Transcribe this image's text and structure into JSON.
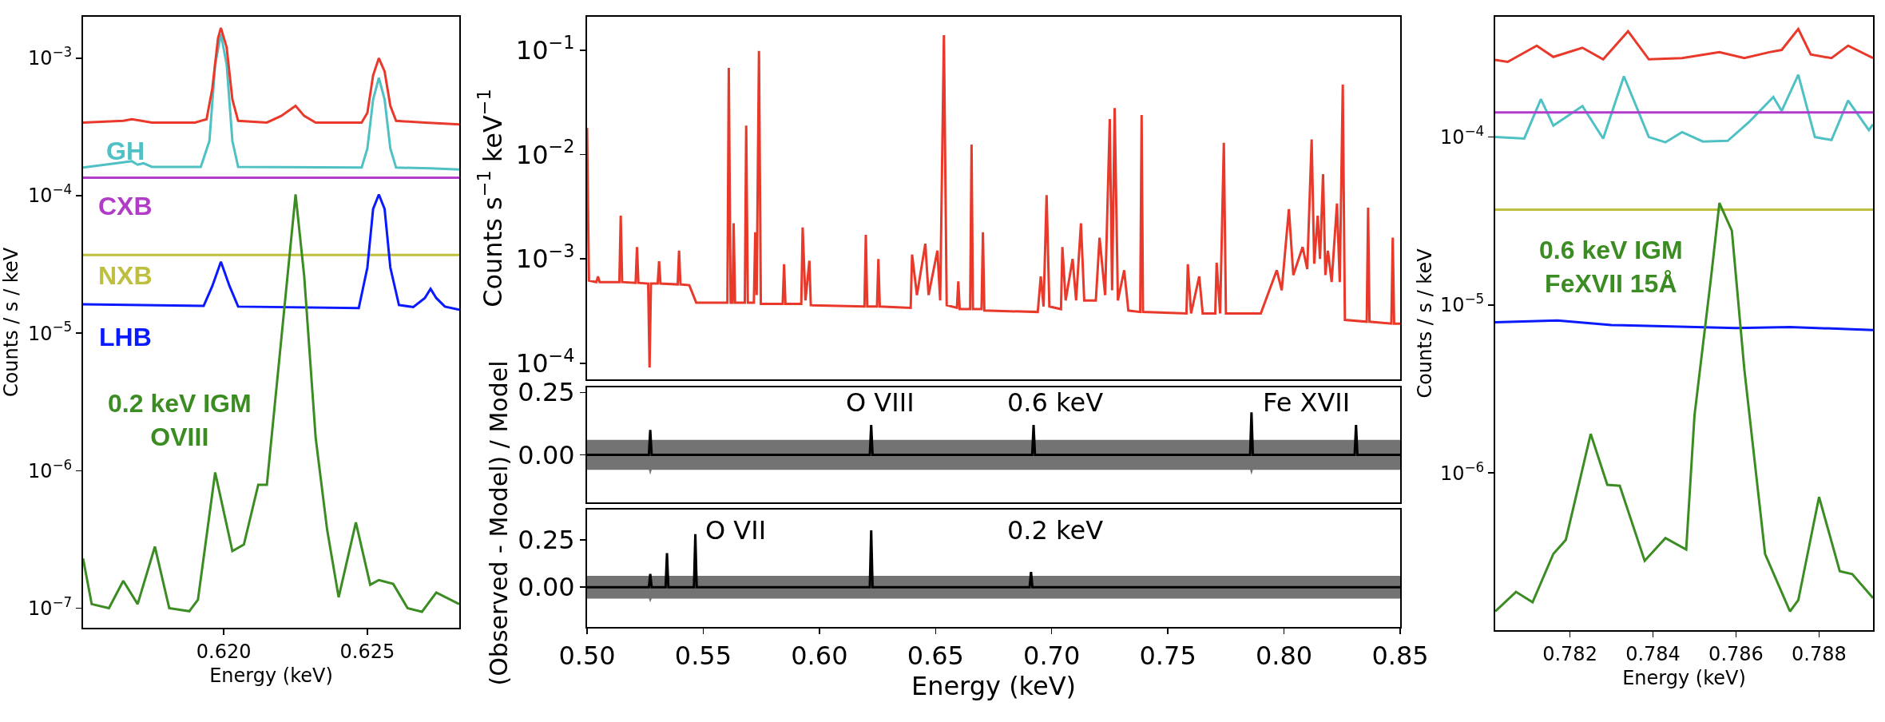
{
  "chart_data": [
    {
      "type": "line",
      "log": true,
      "ylabel": "Counts / s / keV",
      "xlabel": "Energy (keV)",
      "xlim": [
        0.6151,
        0.6282
      ],
      "ylim": [
        7.2e-08,
        0.002
      ],
      "xticks": [
        {
          "value": 0.62,
          "label": "0.620"
        },
        {
          "value": 0.625,
          "label": "0.625"
        }
      ],
      "yticks": [
        {
          "value": 1e-07,
          "label": "10$^{−7}$"
        },
        {
          "value": 1e-06,
          "label": "10$^{−6}$"
        },
        {
          "value": 1e-05,
          "label": "10$^{−5}$"
        },
        {
          "value": 0.0001,
          "label": "10$^{−4}$"
        },
        {
          "value": 0.001,
          "label": "10$^{−3}$"
        }
      ],
      "series": [
        {
          "name": "GH",
          "color": "#4fc1c4",
          "x": [
            0.6151,
            0.6165,
            0.6168,
            0.617,
            0.6172,
            0.6175,
            0.6192,
            0.6195,
            0.6197,
            0.6199,
            0.6201,
            0.6203,
            0.6205,
            0.6248,
            0.625,
            0.6252,
            0.6254,
            0.6256,
            0.6258,
            0.626,
            0.6272,
            0.6282
          ],
          "values": [
            0.00016,
            0.000175,
            0.000178,
            0.000168,
            0.000172,
            0.000162,
            0.000162,
            0.00025,
            0.0009,
            0.0015,
            0.0009,
            0.00025,
            0.000162,
            0.00016,
            0.00022,
            0.0005,
            0.00072,
            0.0005,
            0.00022,
            0.00016,
            0.000158,
            0.000155
          ]
        },
        {
          "name": "CXB",
          "color": "#b03cc8",
          "x": [
            0.6151,
            0.6282
          ],
          "values": [
            0.000135,
            0.000135
          ]
        },
        {
          "name": "NXB",
          "color": "#bfbf3f",
          "x": [
            0.6151,
            0.6282
          ],
          "values": [
            3.7e-05,
            3.7e-05
          ]
        },
        {
          "name": "LHB",
          "color": "#0a1aff",
          "x": [
            0.6151,
            0.6193,
            0.6196,
            0.6199,
            0.6202,
            0.6205,
            0.6247,
            0.625,
            0.6252,
            0.6254,
            0.6256,
            0.6258,
            0.6261,
            0.6266,
            0.627,
            0.6272,
            0.6274,
            0.6277,
            0.6282
          ],
          "values": [
            1.62e-05,
            1.58e-05,
            2.2e-05,
            3.3e-05,
            2.2e-05,
            1.56e-05,
            1.52e-05,
            3e-05,
            8e-05,
            0.000102,
            8e-05,
            3e-05,
            1.6e-05,
            1.55e-05,
            1.8e-05,
            2.1e-05,
            1.8e-05,
            1.56e-05,
            1.48e-05
          ]
        },
        {
          "name": "0.2 keV IGM\nOVIII",
          "color": "#3b8c22",
          "x": [
            0.6151,
            0.6154,
            0.616,
            0.6165,
            0.617,
            0.6176,
            0.6181,
            0.6188,
            0.6191,
            0.6197,
            0.6203,
            0.6207,
            0.6212,
            0.6215,
            0.6219,
            0.6225,
            0.6228,
            0.6232,
            0.6236,
            0.624,
            0.6246,
            0.6251,
            0.6254,
            0.6259,
            0.6264,
            0.6269,
            0.6274,
            0.6282
          ],
          "values": [
            2.3e-07,
            1.07e-07,
            1e-07,
            1.58e-07,
            1.07e-07,
            2.8e-07,
            1e-07,
            9.5e-08,
            1.15e-07,
            9.7e-07,
            2.6e-07,
            2.9e-07,
            7.9e-07,
            7.9e-07,
            5.5e-06,
            0.000102,
            2.6e-05,
            1.73e-06,
            3.7e-07,
            1.2e-07,
            4.2e-07,
            1.48e-07,
            1.6e-07,
            1.5e-07,
            1e-07,
            9.4e-08,
            1.3e-07,
            1.07e-07
          ]
        },
        {
          "color": "#e8392b",
          "x": [
            0.6151,
            0.6165,
            0.6168,
            0.6175,
            0.619,
            0.6194,
            0.6196,
            0.6198,
            0.6199,
            0.6201,
            0.6203,
            0.6205,
            0.6215,
            0.622,
            0.6225,
            0.6228,
            0.6232,
            0.6248,
            0.625,
            0.6252,
            0.6254,
            0.6256,
            0.6258,
            0.626,
            0.627,
            0.6282
          ],
          "values": [
            0.00034,
            0.00035,
            0.00036,
            0.00034,
            0.00034,
            0.00036,
            0.0006,
            0.0014,
            0.00166,
            0.0012,
            0.0005,
            0.00035,
            0.00034,
            0.00038,
            0.00045,
            0.00038,
            0.00034,
            0.00034,
            0.0004,
            0.00075,
            0.001,
            0.0008,
            0.00045,
            0.00035,
            0.00034,
            0.00033
          ]
        }
      ]
    },
    {
      "type": "line",
      "log": true,
      "ylabel": "Counts s$^{−1}$ keV$^{−1}$",
      "xlim": [
        0.5,
        0.85
      ],
      "ylim": [
        7e-05,
        0.21
      ],
      "tick_labels": "y",
      "yticks": [
        {
          "value": 0.0001,
          "label": "10$^{−4}$"
        },
        {
          "value": 0.001,
          "label": "10$^{−3}$"
        },
        {
          "value": 0.01,
          "label": "10$^{−2}$"
        },
        {
          "value": 0.1,
          "label": "10$^{−1}$"
        }
      ],
      "series": [
        {
          "color": "#e8392b",
          "x": [
            0.5,
            0.5008,
            0.504,
            0.5047,
            0.5054,
            0.5139,
            0.5145,
            0.5151,
            0.5209,
            0.5215,
            0.5221,
            0.5263,
            0.5269,
            0.5275,
            0.5304,
            0.531,
            0.5316,
            0.539,
            0.5396,
            0.5402,
            0.544,
            0.547,
            0.5604,
            0.561,
            0.5618,
            0.5626,
            0.5631,
            0.5637,
            0.5679,
            0.5685,
            0.5692,
            0.5718,
            0.5724,
            0.573,
            0.574,
            0.5748,
            0.5842,
            0.5848,
            0.5854,
            0.5922,
            0.5928,
            0.594,
            0.5957,
            0.5963,
            0.6194,
            0.62,
            0.6206,
            0.6248,
            0.6254,
            0.626,
            0.6393,
            0.6399,
            0.642,
            0.6456,
            0.647,
            0.6508,
            0.652,
            0.6536,
            0.6548,
            0.6592,
            0.6598,
            0.6604,
            0.6649,
            0.6655,
            0.6661,
            0.6698,
            0.6704,
            0.671,
            0.694,
            0.6953,
            0.6965,
            0.6978,
            0.699,
            0.704,
            0.7046,
            0.706,
            0.709,
            0.7105,
            0.7126,
            0.714,
            0.719,
            0.7206,
            0.723,
            0.725,
            0.726,
            0.7271,
            0.7285,
            0.7312,
            0.733,
            0.7381,
            0.7387,
            0.7393,
            0.758,
            0.7586,
            0.76,
            0.7635,
            0.765,
            0.7704,
            0.771,
            0.7725,
            0.7741,
            0.775,
            0.79,
            0.7969,
            0.799,
            0.8021,
            0.804,
            0.808,
            0.81,
            0.8119,
            0.813,
            0.8145,
            0.8155,
            0.8168,
            0.8178,
            0.8189,
            0.8205,
            0.8228,
            0.824,
            0.8253,
            0.8262,
            0.8356,
            0.8362,
            0.8368,
            0.8462,
            0.8468,
            0.8474,
            0.85
          ],
          "values": [
            0.018,
            0.00062,
            0.0006,
            0.00068,
            0.0006,
            0.0006,
            0.0026,
            0.0006,
            0.00059,
            0.0013,
            0.00059,
            0.00058,
            9.1e-05,
            0.00058,
            0.00058,
            0.00095,
            0.00058,
            0.00057,
            0.0012,
            0.00057,
            0.00056,
            0.00038,
            0.00038,
            0.068,
            0.00038,
            0.00038,
            0.0022,
            0.00038,
            0.00038,
            0.019,
            0.00038,
            0.00038,
            0.0018,
            0.00045,
            0.099,
            0.00037,
            0.00037,
            0.00089,
            0.00037,
            0.00037,
            0.002,
            0.0004,
            0.00096,
            0.00036,
            0.00035,
            0.0017,
            0.00035,
            0.00035,
            0.001,
            0.00035,
            0.00034,
            0.0011,
            0.00045,
            0.0014,
            0.00045,
            0.0012,
            0.0004,
            0.14,
            0.00036,
            0.00034,
            0.00061,
            0.00033,
            0.00033,
            0.0125,
            0.00033,
            0.00033,
            0.0018,
            0.00032,
            0.00031,
            0.00068,
            0.00035,
            0.0041,
            0.00035,
            0.00033,
            0.0013,
            0.0004,
            0.001,
            0.0004,
            0.0022,
            0.0004,
            0.0004,
            0.0016,
            0.00045,
            0.022,
            0.0005,
            0.028,
            0.0004,
            0.00078,
            0.00032,
            0.00031,
            0.024,
            0.00031,
            0.0003,
            0.00089,
            0.0003,
            0.00068,
            0.0003,
            0.0003,
            0.00092,
            0.0003,
            0.013,
            0.0003,
            0.0003,
            0.00078,
            0.0005,
            0.003,
            0.0007,
            0.0013,
            0.0008,
            0.014,
            0.0009,
            0.0026,
            0.001,
            0.0065,
            0.0007,
            0.0012,
            0.0006,
            0.0034,
            0.0006,
            0.047,
            0.00026,
            0.00025,
            0.0031,
            0.00025,
            0.00024,
            0.0016,
            0.00024,
            0.00024
          ]
        }
      ]
    },
    {
      "type": "line",
      "ylabel": "(Observed - Model) / Model",
      "xlim": [
        0.5,
        0.85
      ],
      "ylim": [
        -0.19,
        0.27
      ],
      "tick_labels": "y",
      "yticks": [
        {
          "value": 0,
          "label": "0.00"
        },
        {
          "value": 0.25,
          "label": "0.25"
        }
      ],
      "annotations": [
        "O VIII",
        "0.6 keV",
        "Fe XVII"
      ],
      "series": [
        {
          "color": "#000000",
          "x": [
            0.5,
            0.5266,
            0.5272,
            0.5278,
            0.6217,
            0.6223,
            0.6229,
            0.6916,
            0.6922,
            0.6928,
            0.7854,
            0.786,
            0.7866,
            0.8304,
            0.831,
            0.8316,
            0.85
          ],
          "values": [
            0,
            0,
            0.1,
            0,
            0,
            0.12,
            0,
            0,
            0.12,
            0,
            0,
            0.17,
            0,
            0,
            0.12,
            0,
            0
          ],
          "lower": [
            -0.06,
            -0.06,
            -0.08,
            -0.06,
            -0.06,
            -0.06,
            -0.06,
            -0.06,
            -0.06,
            -0.06,
            -0.06,
            -0.08,
            -0.06,
            -0.06,
            -0.06,
            -0.06,
            -0.06
          ],
          "upper": [
            0.06,
            0.06,
            0.1,
            0.06,
            0.06,
            0.12,
            0.06,
            0.06,
            0.12,
            0.06,
            0.06,
            0.17,
            0.06,
            0.06,
            0.12,
            0.06,
            0.06
          ]
        }
      ]
    },
    {
      "type": "line",
      "xlabel": "Energy (keV)",
      "xlim": [
        0.5,
        0.85
      ],
      "ylim": [
        -0.21,
        0.41
      ],
      "xticks": [
        {
          "value": 0.5,
          "label": "0.50"
        },
        {
          "value": 0.55,
          "label": "0.55"
        },
        {
          "value": 0.6,
          "label": "0.60"
        },
        {
          "value": 0.65,
          "label": "0.65"
        },
        {
          "value": 0.7,
          "label": "0.70"
        },
        {
          "value": 0.75,
          "label": "0.75"
        },
        {
          "value": 0.8,
          "label": "0.80"
        },
        {
          "value": 0.85,
          "label": "0.85"
        }
      ],
      "yticks": [
        {
          "value": 0,
          "label": "0.00"
        },
        {
          "value": 0.25,
          "label": "0.25"
        }
      ],
      "annotations": [
        "O VII",
        "0.2 keV"
      ],
      "series": [
        {
          "color": "#000000",
          "x": [
            0.5,
            0.5266,
            0.5272,
            0.5278,
            0.5338,
            0.5344,
            0.535,
            0.546,
            0.5466,
            0.5472,
            0.6217,
            0.6223,
            0.6229,
            0.6905,
            0.6911,
            0.6917,
            0.85
          ],
          "values": [
            0,
            0,
            0.07,
            0,
            0,
            0.18,
            0,
            0,
            0.28,
            0,
            0,
            0.3,
            0,
            0,
            0.08,
            0,
            0
          ],
          "lower": [
            -0.06,
            -0.06,
            -0.08,
            -0.06,
            -0.06,
            -0.06,
            -0.06,
            -0.06,
            -0.06,
            -0.06,
            -0.06,
            -0.06,
            -0.06,
            -0.06,
            -0.06,
            -0.06,
            -0.06
          ],
          "upper": [
            0.06,
            0.06,
            0.07,
            0.06,
            0.06,
            0.18,
            0.06,
            0.06,
            0.28,
            0.06,
            0.06,
            0.3,
            0.06,
            0.06,
            0.08,
            0.06,
            0.06
          ]
        }
      ]
    },
    {
      "type": "line",
      "log": true,
      "ylabel": "Counts / s / keV",
      "xlabel": "Energy (keV)",
      "xlim": [
        0.7802,
        0.7893
      ],
      "ylim": [
        1.16e-07,
        0.00052
      ],
      "xticks": [
        {
          "value": 0.782,
          "label": "0.782"
        },
        {
          "value": 0.784,
          "label": "0.784"
        },
        {
          "value": 0.786,
          "label": "0.786"
        },
        {
          "value": 0.788,
          "label": "0.788"
        }
      ],
      "yticks": [
        {
          "value": 1e-06,
          "label": "10$^{−6}$"
        },
        {
          "value": 1e-05,
          "label": "10$^{−5}$"
        },
        {
          "value": 0.0001,
          "label": "10$^{−4}$"
        }
      ],
      "series": [
        {
          "color": "#4fc1c4",
          "x": [
            0.7802,
            0.7809,
            0.7813,
            0.7816,
            0.7823,
            0.7828,
            0.7833,
            0.7839,
            0.7843,
            0.7847,
            0.7852,
            0.7858,
            0.7863,
            0.7869,
            0.7871,
            0.7875,
            0.7879,
            0.7883,
            0.7887,
            0.7892,
            0.7893
          ],
          "values": [
            0.0001,
            9.8e-05,
            0.000168,
            0.000117,
            0.000153,
            9.8e-05,
            0.00023,
            0.0001,
            9.3e-05,
            0.000107,
            9.4e-05,
            9.5e-05,
            0.000122,
            0.000173,
            0.000143,
            0.000235,
            0.0001,
            9.6e-05,
            0.000165,
            0.00011,
            0.000119
          ]
        },
        {
          "color": "#b03cc8",
          "x": [
            0.7802,
            0.7893
          ],
          "values": [
            0.00014,
            0.00014
          ]
        },
        {
          "color": "#bfbf3f",
          "x": [
            0.7802,
            0.7893
          ],
          "values": [
            3.7e-05,
            3.7e-05
          ]
        },
        {
          "color": "#0a1aff",
          "x": [
            0.7802,
            0.7817,
            0.783,
            0.786,
            0.7873,
            0.7893
          ],
          "values": [
            7.9e-06,
            8.1e-06,
            7.6e-06,
            7.3e-06,
            7.4e-06,
            7.1e-06
          ]
        },
        {
          "name": "0.6 keV IGM\nFeXVII 15Å",
          "color": "#3b8c22",
          "x": [
            0.7802,
            0.7807,
            0.7811,
            0.7816,
            0.7819,
            0.7825,
            0.7829,
            0.7832,
            0.7838,
            0.7843,
            0.7848,
            0.785,
            0.7854,
            0.7856,
            0.7859,
            0.7862,
            0.7867,
            0.7873,
            0.7875,
            0.788,
            0.7885,
            0.7888,
            0.7893
          ],
          "values": [
            1.5e-07,
            1.96e-07,
            1.7e-07,
            3.3e-07,
            4e-07,
            1.71e-06,
            8.5e-07,
            8.4e-07,
            3e-07,
            4.1e-07,
            3.5e-07,
            2.2e-06,
            1.47e-05,
            4.05e-05,
            2.77e-05,
            4.15e-06,
            3.3e-07,
            1.5e-07,
            1.75e-07,
            7.2e-07,
            2.6e-07,
            2.5e-07,
            1.8e-07
          ]
        },
        {
          "color": "#e8392b",
          "x": [
            0.7802,
            0.7805,
            0.7812,
            0.7816,
            0.7823,
            0.7828,
            0.7834,
            0.7839,
            0.7847,
            0.7856,
            0.7862,
            0.7868,
            0.7871,
            0.7875,
            0.7878,
            0.7883,
            0.7887,
            0.7893
          ],
          "values": [
            0.000288,
            0.00028,
            0.00035,
            0.0003,
            0.00034,
            0.00029,
            0.000426,
            0.00029,
            0.000295,
            0.00032,
            0.000295,
            0.00032,
            0.00033,
            0.00044,
            0.00031,
            0.000295,
            0.00035,
            0.000295
          ]
        }
      ]
    }
  ]
}
